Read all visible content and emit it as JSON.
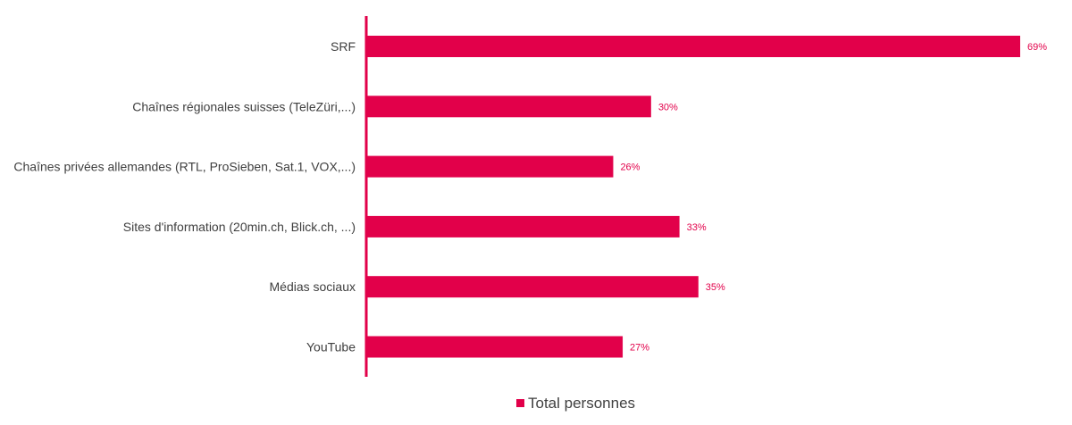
{
  "colors": {
    "bar": "#e2004a",
    "axis": "#e2004a",
    "text": "#3f3f3f"
  },
  "legend": {
    "label": "Total personnes"
  },
  "chart_data": {
    "type": "bar",
    "orientation": "horizontal",
    "categories": [
      "SRF",
      "Chaînes régionales suisses (TeleZüri,...)",
      "Chaînes privées allemandes (RTL, ProSieben, Sat.1, VOX,...)",
      "Sites d'information (20min.ch, Blick.ch, ...)",
      "Médias sociaux",
      "YouTube"
    ],
    "series": [
      {
        "name": "Total personnes",
        "values": [
          69,
          30,
          26,
          33,
          35,
          27
        ]
      }
    ],
    "value_labels": [
      "69%",
      "30%",
      "26%",
      "33%",
      "35%",
      "27%"
    ],
    "xlim": [
      0,
      70
    ],
    "grid": false,
    "legend_position": "bottom"
  }
}
